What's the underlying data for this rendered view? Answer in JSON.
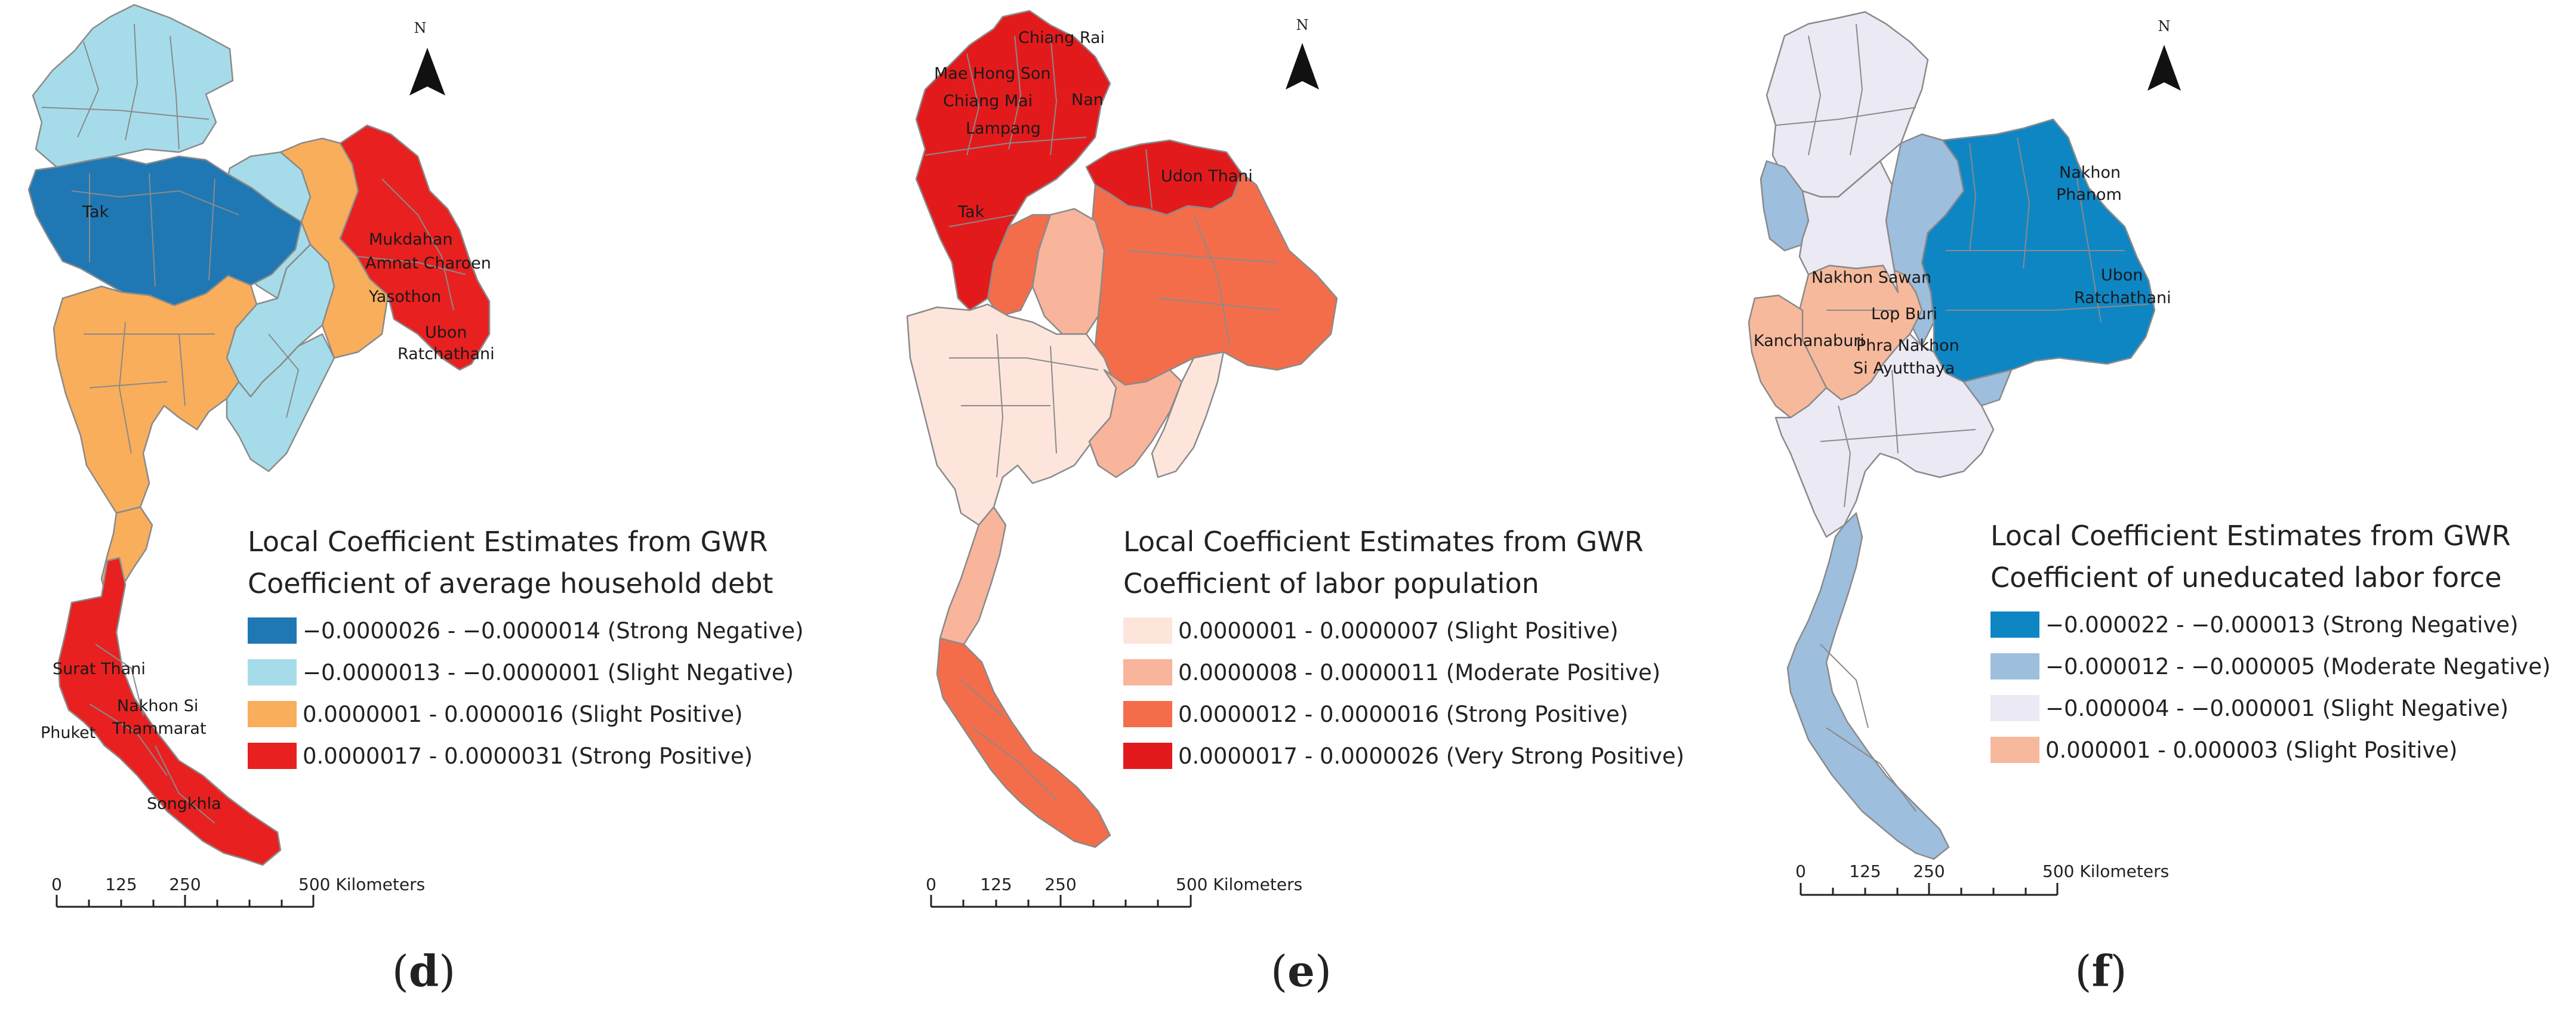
{
  "panels": [
    {
      "letter": "d",
      "legend_title": "Local Coefficient Estimates from GWR",
      "legend_subtitle": "Coefficient of average household debt",
      "legend_items": [
        {
          "label": "−0.0000026 - −0.0000014 (Strong Negative)",
          "color": "#1f78b4"
        },
        {
          "label": "−0.0000013 - −0.0000001 (Slight Negative)",
          "color": "#a6dcea"
        },
        {
          "label": "0.0000001 - 0.0000016 (Slight Positive)",
          "color": "#f9ae5b"
        },
        {
          "label": "0.0000017 - 0.0000031 (Strong Positive)",
          "color": "#e82020"
        }
      ],
      "place_labels": [
        "Tak",
        "Mukdahan",
        "Amnat Charoen",
        "Yasothon",
        "Ubon",
        "Ratchathani",
        "Surat Thani",
        "Phuket",
        "Nakhon Si",
        "Thammarat",
        "Songkhla"
      ],
      "north_letter": "N",
      "scale_ticks": [
        "0",
        "125",
        "250",
        "500 Kilometers"
      ]
    },
    {
      "letter": "e",
      "legend_title": "Local Coefficient Estimates from GWR",
      "legend_subtitle": "Coefficient of labor population",
      "legend_items": [
        {
          "label": "0.0000001 - 0.0000007 (Slight Positive)",
          "color": "#fde5dc"
        },
        {
          "label": "0.0000008 - 0.0000011 (Moderate Positive)",
          "color": "#f9b49c"
        },
        {
          "label": "0.0000012 - 0.0000016 (Strong Positive)",
          "color": "#f46d4a"
        },
        {
          "label": "0.0000017 - 0.0000026 (Very Strong Positive)",
          "color": "#e31a1c"
        }
      ],
      "place_labels": [
        "Chiang Rai",
        "Mae Hong Son",
        "Chiang Mai",
        "Nan",
        "Lampang",
        "Udon Thani",
        "Tak"
      ],
      "north_letter": "N",
      "scale_ticks": [
        "0",
        "125",
        "250",
        "500 Kilometers"
      ]
    },
    {
      "letter": "f",
      "legend_title": "Local Coefficient Estimates from GWR",
      "legend_subtitle": "Coefficient of uneducated labor force",
      "legend_items": [
        {
          "label": "−0.000022 - −0.000013 (Strong Negative)",
          "color": "#0e86c4"
        },
        {
          "label": "−0.000012 - −0.000005 (Moderate Negative)",
          "color": "#9ebedd"
        },
        {
          "label": "−0.000004 - −0.000001 (Slight Negative)",
          "color": "#ebe9f4"
        },
        {
          "label": "0.000001 - 0.000003 (Slight Positive)",
          "color": "#f7b99c"
        }
      ],
      "place_labels": [
        "Nakhon",
        "Phanom",
        "Nakhon Sawan",
        "Ubon",
        "Ratchathani",
        "Lop Buri",
        "Kanchanaburi",
        "Phra Nakhon",
        "Si Ayutthaya"
      ],
      "north_letter": "N",
      "scale_ticks": [
        "0",
        "125",
        "250",
        "500 Kilometers"
      ]
    }
  ]
}
